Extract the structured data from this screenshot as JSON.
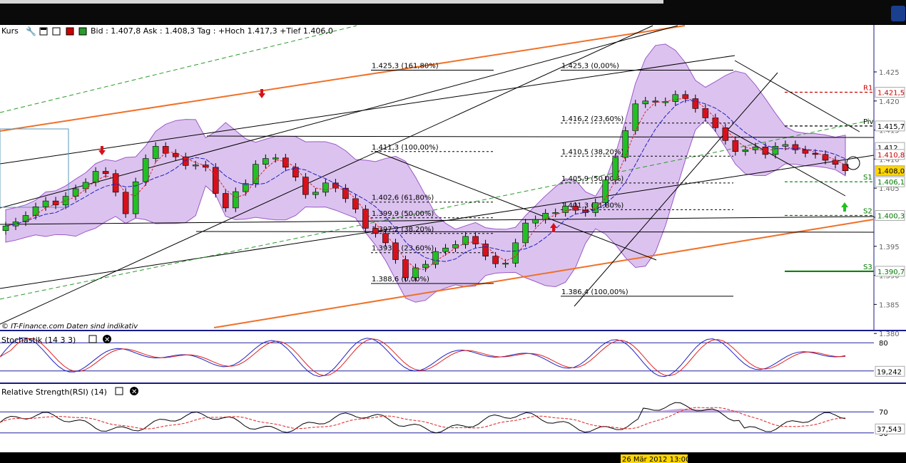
{
  "panels": {
    "price": {
      "title": "Kurs",
      "quote": "Bid : 1.407,8 Ask : 1.408,3  Tag : +Hoch 1.417,3 +Tief 1.406,0",
      "watermark": "© IT-Finance.com  Daten sind indikativ"
    },
    "stochastic": {
      "title": "Stochastik (14 3 3)"
    },
    "rsi": {
      "title": "Relative Strength(RSI) (14)"
    }
  },
  "time_axis": {
    "cursor_label": "26 Mär 2012 13:00"
  },
  "price_axis": {
    "ticks": [
      "1.425",
      "1.420",
      "1.415",
      "1.410",
      "1.405",
      "1.400",
      "1.395",
      "1.390",
      "1.385",
      "1.380"
    ],
    "ylim": [
      1.381,
      1.431
    ]
  },
  "levels": [
    {
      "name": "R1",
      "label": "1.421,5",
      "value": 1.4215,
      "color": "#cc0000",
      "style": "dashed"
    },
    {
      "name": "Piv",
      "label": "1.415,7",
      "value": 1.4157,
      "color": "#000000",
      "style": "dashed"
    },
    {
      "name": "S1",
      "label": "1.406,1",
      "value": 1.4061,
      "color": "#007a00",
      "style": "dashed"
    },
    {
      "name": "S2",
      "label": "1.400,3",
      "value": 1.4003,
      "color": "#007a00",
      "style": "dashed"
    },
    {
      "name": "S3",
      "label": "1.390,7",
      "value": 1.3907,
      "color": "#007a00",
      "style": "solid"
    }
  ],
  "price_badges": [
    {
      "label": "1.412",
      "value": 1.412,
      "bg": "#ffffff",
      "fg": "#000000"
    },
    {
      "label": "1.410,8",
      "value": 1.4108,
      "bg": "#ffffff",
      "fg": "#cc0000"
    },
    {
      "label": "1.408,0",
      "value": 1.408,
      "bg": "#ffd700",
      "fg": "#000000"
    }
  ],
  "fib_sets": [
    {
      "levels": [
        {
          "label": "1.425,3 (161,80%)",
          "value": 1.4253
        },
        {
          "label": "1.411,3 (100,00%)",
          "value": 1.4113
        },
        {
          "label": "1.402,6 (61,80%)",
          "value": 1.4026
        },
        {
          "label": "1.399,9 (50,00%)",
          "value": 1.3999
        },
        {
          "label": "1.397,2 (38,20%)",
          "value": 1.3972
        },
        {
          "label": "1.393,9 (23,60%)",
          "value": 1.3939
        },
        {
          "label": "1.388,6 (0,00%)",
          "value": 1.3886
        }
      ]
    },
    {
      "levels": [
        {
          "label": "1.425,3 (0,00%)",
          "value": 1.4253
        },
        {
          "label": "1.416,2 (23,60%)",
          "value": 1.4162
        },
        {
          "label": "1.410,5 (38,20%)",
          "value": 1.4105
        },
        {
          "label": "1.405,9 (50,00%)",
          "value": 1.4059
        },
        {
          "label": "1.401,3 (61,80%)",
          "value": 1.4013
        },
        {
          "label": "1.386,4 (100,00%)",
          "value": 1.3864
        }
      ]
    }
  ],
  "stochastic_axis": {
    "ticks": [
      "80"
    ],
    "current_label": "19,242",
    "current": 19.242
  },
  "rsi_axis": {
    "ticks": [
      "70",
      "30"
    ],
    "current_label": "37,543",
    "current": 37.543
  },
  "chart_data": {
    "type": "line",
    "title": "",
    "series": [
      {
        "values": [
          1.3985,
          1.3992,
          1.4003,
          1.4018,
          1.4028,
          1.4021,
          1.4036,
          1.4049,
          1.406,
          1.4079,
          1.4075,
          1.4043,
          1.4006,
          1.4061,
          1.4101,
          1.4122,
          1.411,
          1.4104,
          1.4089,
          1.409,
          1.4086,
          1.4041,
          1.4016,
          1.4044,
          1.4058,
          1.4091,
          1.4101,
          1.4102,
          1.4086,
          1.4069,
          1.4039,
          1.4043,
          1.4059,
          1.405,
          1.4032,
          1.4014,
          1.3981,
          1.3972,
          1.3956,
          1.3927,
          1.3896,
          1.3913,
          1.3919,
          1.3941,
          1.3947,
          1.3953,
          1.3967,
          1.3954,
          1.3933,
          1.392,
          1.3921,
          1.3956,
          1.399,
          1.3996,
          1.4007,
          1.4008,
          1.4019,
          1.4012,
          1.4008,
          1.4025,
          1.4064,
          1.4103,
          1.4149,
          1.4195,
          1.42,
          1.4198,
          1.4199,
          1.4211,
          1.4204,
          1.4187,
          1.4171,
          1.4154,
          1.4132,
          1.4113,
          1.4116,
          1.4121,
          1.4108,
          1.4122,
          1.4125,
          1.4116,
          1.411,
          1.4108,
          1.4098,
          1.4091,
          1.408
        ]
      }
    ],
    "ylim": [
      1.381,
      1.431
    ]
  }
}
